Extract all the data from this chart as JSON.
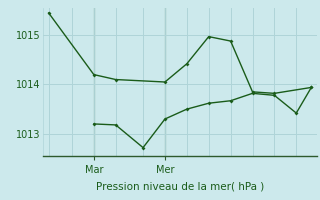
{
  "title": "Pression niveau de la mer( hPa )",
  "background_color": "#cce9ec",
  "grid_color": "#afd4d8",
  "line_color": "#1a5c1a",
  "text_color": "#1a5c1a",
  "border_color": "#2d5a2d",
  "ylim": [
    1012.55,
    1015.55
  ],
  "yticks": [
    1013,
    1014,
    1015
  ],
  "xtick_labels": [
    "Mar",
    "Mer"
  ],
  "xtick_x": [
    0.185,
    0.445
  ],
  "series1_x": [
    0.02,
    0.185,
    0.265,
    0.445,
    0.525,
    0.605,
    0.685,
    0.765,
    0.845,
    0.98
  ],
  "series1_y": [
    1015.45,
    1014.2,
    1014.1,
    1014.05,
    1014.42,
    1014.97,
    1014.88,
    1013.85,
    1013.82,
    1013.94
  ],
  "series2_x": [
    0.185,
    0.265,
    0.365,
    0.445,
    0.525,
    0.605,
    0.685,
    0.765,
    0.845,
    0.925,
    0.98
  ],
  "series2_y": [
    1013.2,
    1013.18,
    1012.72,
    1013.3,
    1013.5,
    1013.62,
    1013.67,
    1013.82,
    1013.78,
    1013.42,
    1013.94
  ]
}
